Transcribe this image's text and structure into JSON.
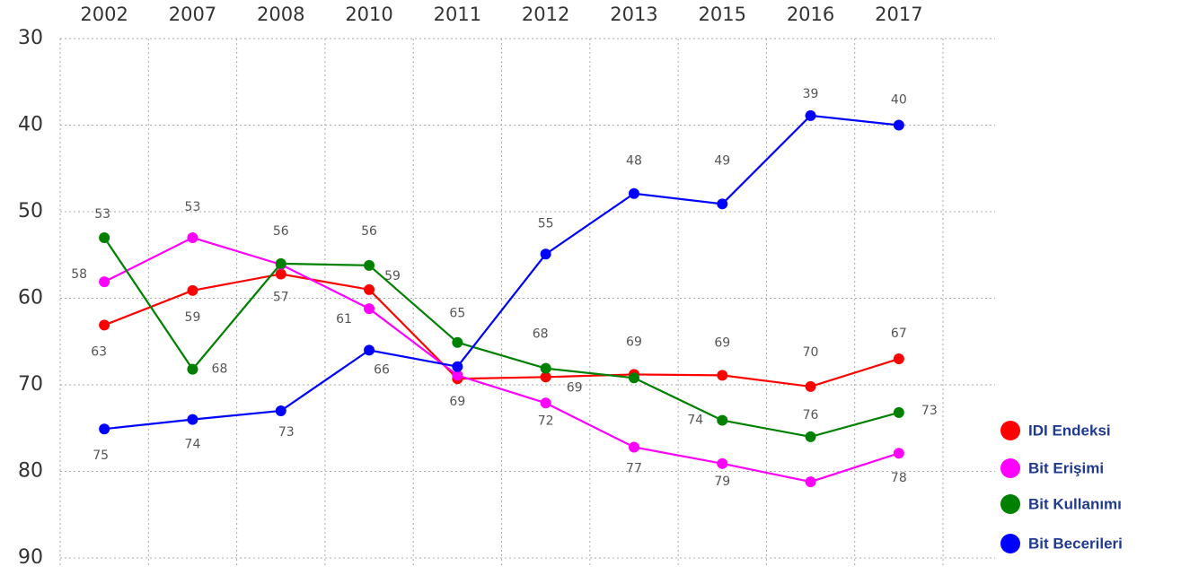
{
  "chart_data": {
    "type": "line",
    "categories": [
      "2002",
      "2007",
      "2008",
      "2010",
      "2011",
      "2012",
      "2013",
      "2015",
      "2016",
      "2017"
    ],
    "ylim": [
      30,
      90
    ],
    "yticks": [
      30,
      40,
      50,
      60,
      70,
      80,
      90
    ],
    "y_inverted": true,
    "grid": true,
    "legend": "right",
    "series": [
      {
        "name": "IDI Endeksi",
        "color": "#ff0000",
        "values": [
          63.1,
          59.1,
          57.2,
          59.0,
          69.3,
          69.1,
          68.8,
          68.9,
          70.2,
          67.0
        ],
        "value_labels": [
          "63",
          "59",
          "57",
          "59",
          "69",
          "69",
          "69",
          "69",
          "70",
          "67"
        ]
      },
      {
        "name": "Bit Erişimi",
        "color": "#ff00ff",
        "values": [
          58.1,
          53.0,
          56.1,
          61.2,
          68.9,
          72.1,
          77.2,
          79.1,
          81.2,
          77.9
        ],
        "value_labels": [
          "58",
          "53",
          null,
          "61",
          null,
          "72",
          "77",
          "79",
          null,
          "78"
        ]
      },
      {
        "name": "Bit Kullanımı",
        "color": "#008000",
        "values": [
          53.0,
          68.2,
          56.0,
          56.2,
          65.1,
          68.1,
          69.2,
          74.1,
          76.0,
          73.2
        ],
        "value_labels": [
          "53",
          "68",
          "56",
          "56",
          "65",
          "68",
          null,
          "74",
          "76",
          "73"
        ]
      },
      {
        "name": "Bit Becerileri",
        "color": "#0000ff",
        "values": [
          75.1,
          74.0,
          73.0,
          66.0,
          67.9,
          54.9,
          47.9,
          49.1,
          38.9,
          40.0
        ],
        "value_labels": [
          "75",
          "74",
          "73",
          "66",
          null,
          "55",
          "48",
          "49",
          "39",
          "40"
        ]
      }
    ]
  }
}
